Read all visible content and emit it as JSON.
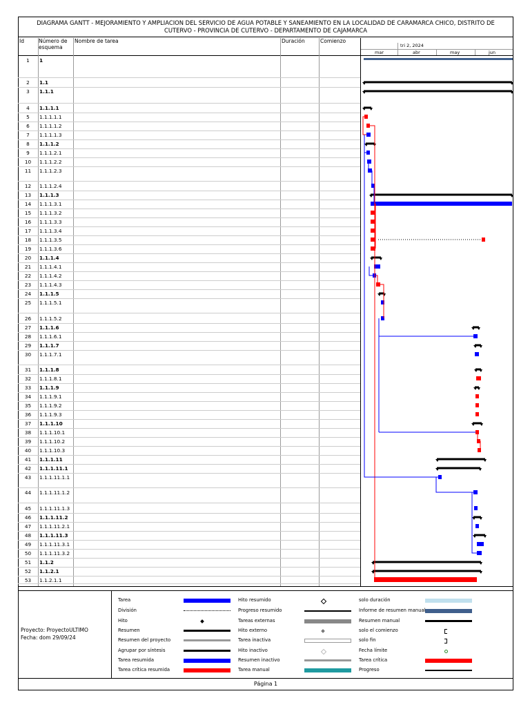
{
  "title": {
    "line1": "DIAGRAMA GANTT   -   MEJORAMIENTO Y AMPLIACION DEL SERVICIO DE AGUA POTABLE Y SANEAMIENTO EN LA LOCALIDAD DE CARAMARCA CHICO, DISTRITO DE",
    "line2": "CUTERVO - PROVINCIA DE CUTERVO - DEPARTAMENTO DE CAJAMARCA"
  },
  "columns": {
    "id": "Id",
    "schema": "Número de esquema",
    "name": "Nombre de tarea",
    "duration": "Duración",
    "start": "Comienzo"
  },
  "timescale": {
    "period": "tri 2, 2024",
    "months": [
      "mar",
      "abr",
      "may",
      "jun"
    ]
  },
  "rows": [
    {
      "id": "1",
      "wbs": "1",
      "bold": true
    },
    {
      "id": "2",
      "wbs": "1.1",
      "bold": true
    },
    {
      "id": "3",
      "wbs": "1.1.1",
      "bold": true
    },
    {
      "id": "4",
      "wbs": "1.1.1.1",
      "bold": true
    },
    {
      "id": "5",
      "wbs": "1.1.1.1.1",
      "bold": false
    },
    {
      "id": "6",
      "wbs": "1.1.1.1.2",
      "bold": false
    },
    {
      "id": "7",
      "wbs": "1.1.1.1.3",
      "bold": false
    },
    {
      "id": "8",
      "wbs": "1.1.1.2",
      "bold": true
    },
    {
      "id": "9",
      "wbs": "1.1.1.2.1",
      "bold": false
    },
    {
      "id": "10",
      "wbs": "1.1.1.2.2",
      "bold": false
    },
    {
      "id": "11",
      "wbs": "1.1.1.2.3",
      "bold": false
    },
    {
      "id": "12",
      "wbs": "1.1.1.2.4",
      "bold": false
    },
    {
      "id": "13",
      "wbs": "1.1.1.3",
      "bold": true
    },
    {
      "id": "14",
      "wbs": "1.1.1.3.1",
      "bold": false
    },
    {
      "id": "15",
      "wbs": "1.1.1.3.2",
      "bold": false
    },
    {
      "id": "16",
      "wbs": "1.1.1.3.3",
      "bold": false
    },
    {
      "id": "17",
      "wbs": "1.1.1.3.4",
      "bold": false
    },
    {
      "id": "18",
      "wbs": "1.1.1.3.5",
      "bold": false
    },
    {
      "id": "19",
      "wbs": "1.1.1.3.6",
      "bold": false
    },
    {
      "id": "20",
      "wbs": "1.1.1.4",
      "bold": true
    },
    {
      "id": "21",
      "wbs": "1.1.1.4.1",
      "bold": false
    },
    {
      "id": "22",
      "wbs": "1.1.1.4.2",
      "bold": false
    },
    {
      "id": "23",
      "wbs": "1.1.1.4.3",
      "bold": false
    },
    {
      "id": "24",
      "wbs": "1.1.1.5",
      "bold": true
    },
    {
      "id": "25",
      "wbs": "1.1.1.5.1",
      "bold": false
    },
    {
      "id": "26",
      "wbs": "1.1.1.5.2",
      "bold": false
    },
    {
      "id": "27",
      "wbs": "1.1.1.6",
      "bold": true
    },
    {
      "id": "28",
      "wbs": "1.1.1.6.1",
      "bold": false
    },
    {
      "id": "29",
      "wbs": "1.1.1.7",
      "bold": true
    },
    {
      "id": "30",
      "wbs": "1.1.1.7.1",
      "bold": false
    },
    {
      "id": "31",
      "wbs": "1.1.1.8",
      "bold": true
    },
    {
      "id": "32",
      "wbs": "1.1.1.8.1",
      "bold": false
    },
    {
      "id": "33",
      "wbs": "1.1.1.9",
      "bold": true
    },
    {
      "id": "34",
      "wbs": "1.1.1.9.1",
      "bold": false
    },
    {
      "id": "35",
      "wbs": "1.1.1.9.2",
      "bold": false
    },
    {
      "id": "36",
      "wbs": "1.1.1.9.3",
      "bold": false
    },
    {
      "id": "37",
      "wbs": "1.1.1.10",
      "bold": true
    },
    {
      "id": "38",
      "wbs": "1.1.1.10.1",
      "bold": false
    },
    {
      "id": "39",
      "wbs": "1.1.1.10.2",
      "bold": false
    },
    {
      "id": "40",
      "wbs": "1.1.1.10.3",
      "bold": false
    },
    {
      "id": "41",
      "wbs": "1.1.1.11",
      "bold": true
    },
    {
      "id": "42",
      "wbs": "1.1.1.11.1",
      "bold": true
    },
    {
      "id": "43",
      "wbs": "1.1.1.11.1.1",
      "bold": false
    },
    {
      "id": "44",
      "wbs": "1.1.1.11.1.2",
      "bold": false
    },
    {
      "id": "45",
      "wbs": "1.1.1.11.1.3",
      "bold": false
    },
    {
      "id": "46",
      "wbs": "1.1.1.11.2",
      "bold": true
    },
    {
      "id": "47",
      "wbs": "1.1.1.11.2.1",
      "bold": false
    },
    {
      "id": "48",
      "wbs": "1.1.1.11.3",
      "bold": true
    },
    {
      "id": "49",
      "wbs": "1.1.1.11.3.1",
      "bold": false
    },
    {
      "id": "50",
      "wbs": "1.1.1.11.3.2",
      "bold": false
    },
    {
      "id": "51",
      "wbs": "1.1.2",
      "bold": true
    },
    {
      "id": "52",
      "wbs": "1.1.2.1",
      "bold": true
    },
    {
      "id": "53",
      "wbs": "1.1.2.1.1",
      "bold": false
    }
  ],
  "project": {
    "name": "Proyecto: ProyectoULTIMO",
    "date": "Fecha: dom 29/09/24"
  },
  "legend": {
    "col1": [
      "Tarea",
      "División",
      "Hito",
      "Resumen",
      "Resumen del proyecto",
      "Agrupar por síntesis",
      "Tarea resumida",
      "Tarea crítica resumida"
    ],
    "col2": [
      "Hito resumido",
      "Progreso resumido",
      "Tareas externas",
      "Hito externo",
      "Tarea inactiva",
      "Hito inactivo",
      "Resumen inactivo",
      "Tarea manual"
    ],
    "col3": [
      "solo duración",
      "Informe de resumen manual",
      "Resumen manual",
      "solo el comienzo",
      "solo fin",
      "Fecha límite",
      "Tarea crítica",
      "Progreso"
    ]
  },
  "colors": {
    "task": "#0000ff",
    "critical": "#ff0000",
    "summary": "#000000",
    "manual_summary_rollup": "#3f5f8c",
    "manual_task": "#1f9aa0",
    "duration_only": "#c0e0ee"
  },
  "footer": {
    "page": "Página 1"
  }
}
